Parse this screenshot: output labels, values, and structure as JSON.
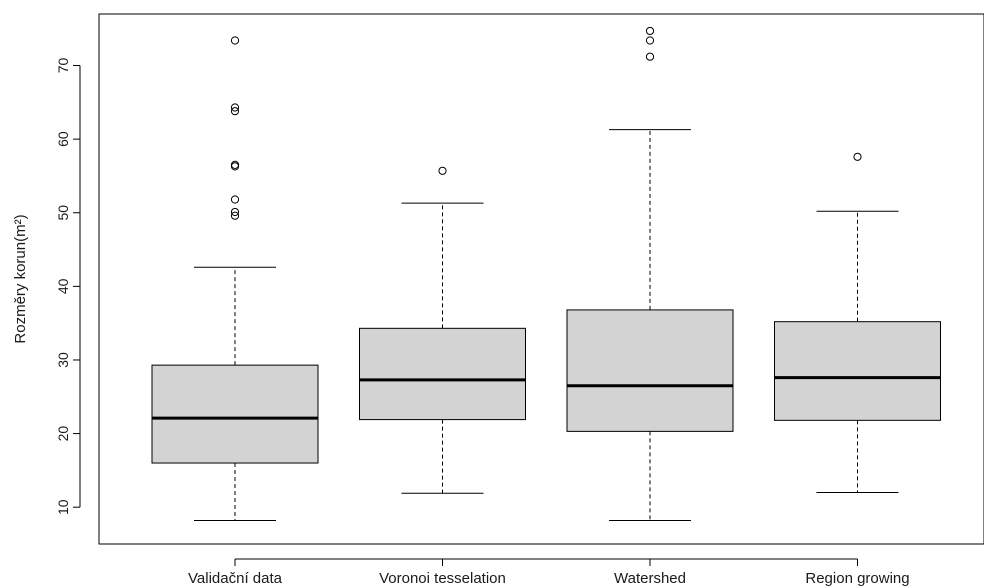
{
  "chart_data": {
    "type": "boxplot",
    "title": "",
    "xlabel": "",
    "ylabel": "Rozměry korun(m²)",
    "ylim": [
      5,
      77
    ],
    "yticks": [
      10,
      20,
      30,
      40,
      50,
      60,
      70
    ],
    "grid": false,
    "legend": "none",
    "categories": [
      "Validační data",
      "Voronoi tesselation",
      "Watershed",
      "Region growing"
    ],
    "boxes": [
      {
        "category": "Validační data",
        "whisker_low": 8.2,
        "q1": 16.0,
        "median": 22.1,
        "q3": 29.3,
        "whisker_high": 42.6,
        "outliers": [
          49.6,
          50.1,
          51.8,
          56.3,
          56.5,
          63.8,
          64.3,
          73.4
        ]
      },
      {
        "category": "Voronoi tesselation",
        "whisker_low": 11.9,
        "q1": 21.9,
        "median": 27.3,
        "q3": 34.3,
        "whisker_high": 51.3,
        "outliers": [
          55.7
        ]
      },
      {
        "category": "Watershed",
        "whisker_low": 8.2,
        "q1": 20.3,
        "median": 26.5,
        "q3": 36.8,
        "whisker_high": 61.3,
        "outliers": [
          71.2,
          73.4,
          74.7
        ]
      },
      {
        "category": "Region growing",
        "whisker_low": 12.0,
        "q1": 21.8,
        "median": 27.6,
        "q3": 35.2,
        "whisker_high": 50.2,
        "outliers": [
          57.6
        ]
      }
    ],
    "colors": {
      "box_fill": "#d3d3d3",
      "stroke": "#000000"
    }
  }
}
